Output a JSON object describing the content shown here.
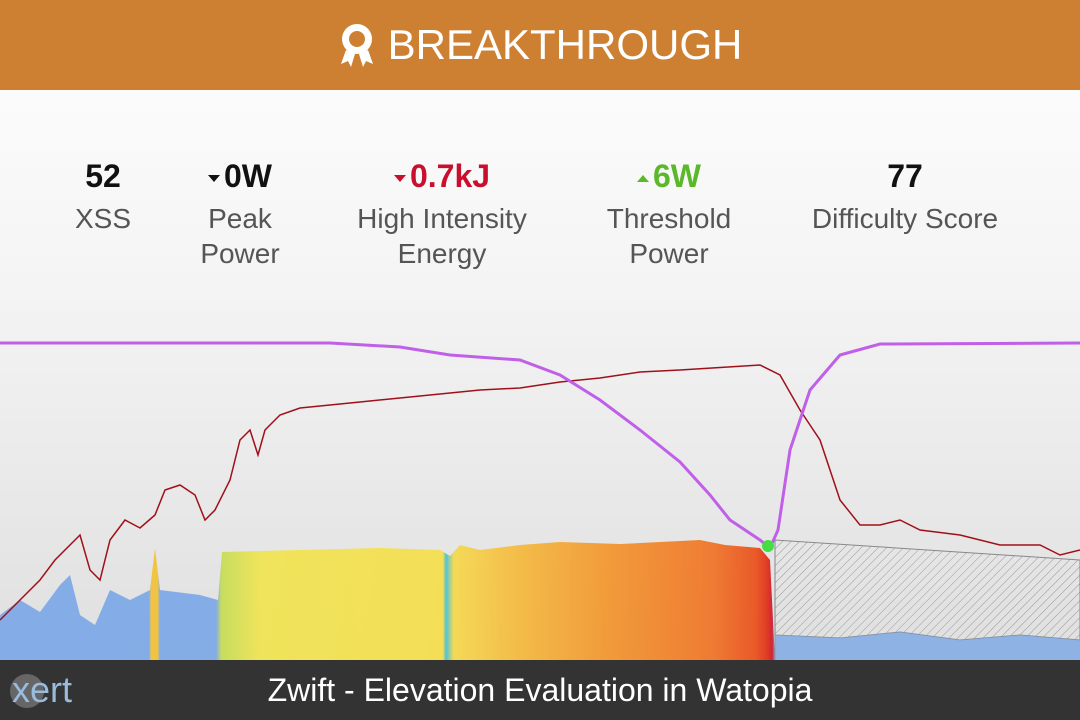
{
  "header": {
    "title": "BREAKTHROUGH"
  },
  "metrics": [
    {
      "value": "52",
      "label": "XSS"
    },
    {
      "value": "0W",
      "label": "Peak Power"
    },
    {
      "value": "0.7kJ",
      "label": "High Intensity Energy"
    },
    {
      "value": "6W",
      "label": "Threshold Power"
    },
    {
      "value": "77",
      "label": "Difficulty Score"
    }
  ],
  "footer": {
    "logo": "xert",
    "title": "Zwift - Elevation Evaluation in Watopia"
  }
}
